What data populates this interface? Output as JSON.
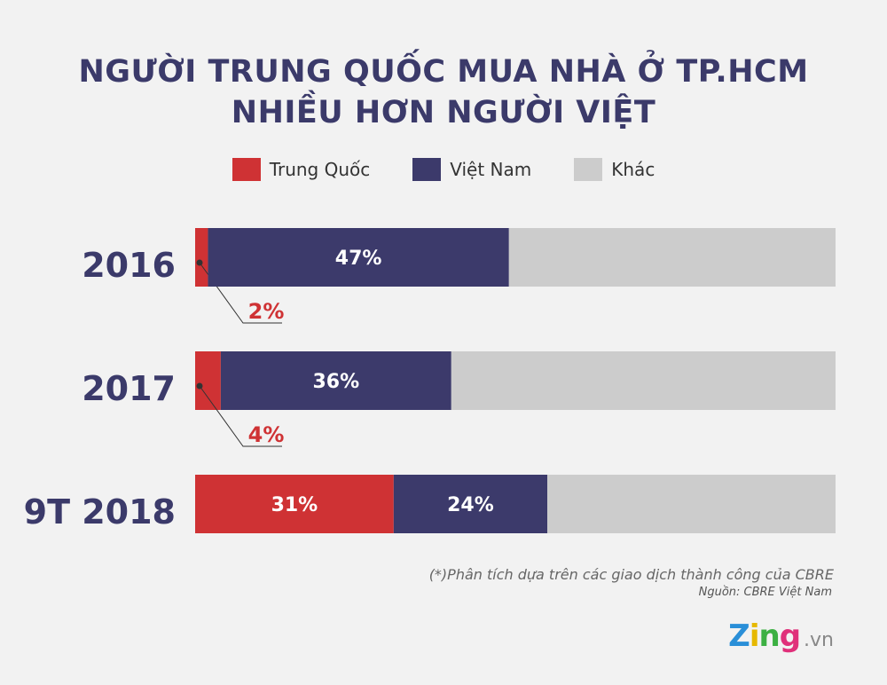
{
  "chart_data": {
    "type": "bar",
    "orientation": "horizontal",
    "stacked": true,
    "title": [
      "NGƯỜI TRUNG QUỐC MUA NHÀ Ở TP.HCM",
      "NHIỀU HƠN NGƯỜI VIỆT"
    ],
    "categories": [
      "2016",
      "2017",
      "9T 2018"
    ],
    "series": [
      {
        "name": "Trung Quốc",
        "color": "#cf3234",
        "values": [
          2,
          4,
          31
        ],
        "labels": [
          "2%",
          "4%",
          "31%"
        ]
      },
      {
        "name": "Việt Nam",
        "color": "#3c3a6b",
        "values": [
          47,
          36,
          24
        ],
        "labels": [
          "47%",
          "36%",
          "24%"
        ]
      },
      {
        "name": "Khác",
        "color": "#cccccc",
        "values": [
          51,
          60,
          45
        ]
      }
    ],
    "xlim": [
      0,
      100
    ],
    "grid": false,
    "legend_position": "top"
  },
  "footnote": "(*)Phân tích dựa trên các giao dịch thành công của CBRE",
  "source": "Nguồn: CBRE Việt Nam",
  "logo": {
    "text": "Zing",
    "suffix": ".vn"
  }
}
